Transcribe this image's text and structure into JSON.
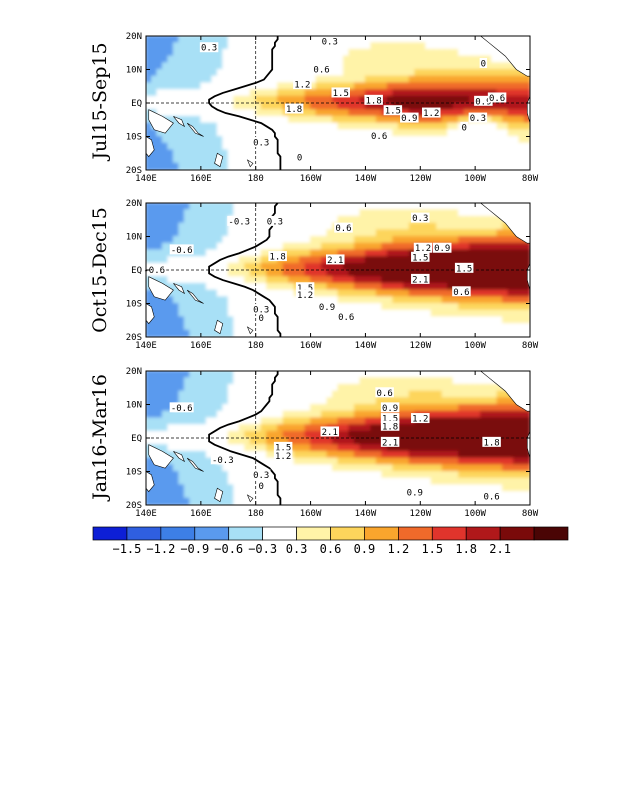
{
  "panels": [
    {
      "id": "p1",
      "title": "Jul15-Sep15",
      "contour_labels": [
        {
          "text": "0.3",
          "lon": 163,
          "lat": 16.5
        },
        {
          "text": "0.3",
          "lon": 207,
          "lat": 18.3
        },
        {
          "text": "0.6",
          "lon": 204,
          "lat": 10.0
        },
        {
          "text": "1.2",
          "lon": 197,
          "lat": 5.5
        },
        {
          "text": "1.5",
          "lon": 211,
          "lat": 3.0
        },
        {
          "text": "1.8",
          "lon": 223,
          "lat": 0.8
        },
        {
          "text": "1.8",
          "lon": 194,
          "lat": -1.8
        },
        {
          "text": "1.5",
          "lon": 230,
          "lat": -2.3
        },
        {
          "text": "0.9",
          "lon": 236,
          "lat": -4.5
        },
        {
          "text": "1.2",
          "lon": 244,
          "lat": -3.0
        },
        {
          "text": "0.9",
          "lon": 263,
          "lat": 0.5
        },
        {
          "text": "0.6",
          "lon": 268,
          "lat": 1.5
        },
        {
          "text": "0.3",
          "lon": 261,
          "lat": -4.5
        },
        {
          "text": "0.6",
          "lon": 225,
          "lat": -9.8
        },
        {
          "text": "0.3",
          "lon": 182,
          "lat": -11.8
        },
        {
          "text": "0",
          "lon": 196,
          "lat": -16.3
        },
        {
          "text": "0",
          "lon": 263,
          "lat": 11.8
        },
        {
          "text": "0",
          "lon": 256,
          "lat": -7.3
        }
      ]
    },
    {
      "id": "p2",
      "title": "Oct15-Dec15",
      "contour_labels": [
        {
          "text": "-0.3",
          "lon": 174,
          "lat": 14.5
        },
        {
          "text": "0.3",
          "lon": 187,
          "lat": 14.5
        },
        {
          "text": "-0.6",
          "lon": 153,
          "lat": 6.0
        },
        {
          "text": "-0.6",
          "lon": 143,
          "lat": 0.0
        },
        {
          "text": "0.6",
          "lon": 212,
          "lat": 12.5
        },
        {
          "text": "0.3",
          "lon": 240,
          "lat": 15.5
        },
        {
          "text": "1.2",
          "lon": 241,
          "lat": 6.5
        },
        {
          "text": "0.9",
          "lon": 248,
          "lat": 6.5
        },
        {
          "text": "1.8",
          "lon": 188,
          "lat": 4.0
        },
        {
          "text": "2.1",
          "lon": 209,
          "lat": 3.0
        },
        {
          "text": "1.5",
          "lon": 240,
          "lat": 3.8
        },
        {
          "text": "1.5",
          "lon": 256,
          "lat": 0.5
        },
        {
          "text": "2.1",
          "lon": 240,
          "lat": -2.8
        },
        {
          "text": "1.5",
          "lon": 198,
          "lat": -5.3
        },
        {
          "text": "1.2",
          "lon": 198,
          "lat": -7.5
        },
        {
          "text": "0.6",
          "lon": 255,
          "lat": -6.5
        },
        {
          "text": "0.3",
          "lon": 182,
          "lat": -11.8
        },
        {
          "text": "0.9",
          "lon": 206,
          "lat": -11.0
        },
        {
          "text": "0.6",
          "lon": 213,
          "lat": -14.0
        },
        {
          "text": "0",
          "lon": 182,
          "lat": -14.3
        }
      ]
    },
    {
      "id": "p3",
      "title": "Jan16-Mar16",
      "contour_labels": [
        {
          "text": "-0.6",
          "lon": 153,
          "lat": 9.0
        },
        {
          "text": "0.6",
          "lon": 227,
          "lat": 13.5
        },
        {
          "text": "0.9",
          "lon": 229,
          "lat": 9.0
        },
        {
          "text": "1.2",
          "lon": 240,
          "lat": 5.8
        },
        {
          "text": "1.5",
          "lon": 229,
          "lat": 5.8
        },
        {
          "text": "1.8",
          "lon": 229,
          "lat": 3.5
        },
        {
          "text": "2.1",
          "lon": 207,
          "lat": 1.8
        },
        {
          "text": "2.1",
          "lon": 229,
          "lat": -1.3
        },
        {
          "text": "1.8",
          "lon": 266,
          "lat": -1.3
        },
        {
          "text": "1.5",
          "lon": 190,
          "lat": -2.8
        },
        {
          "text": "1.2",
          "lon": 190,
          "lat": -5.3
        },
        {
          "text": "-0.3",
          "lon": 168,
          "lat": -6.5
        },
        {
          "text": "0.3",
          "lon": 182,
          "lat": -11.0
        },
        {
          "text": "0.9",
          "lon": 238,
          "lat": -16.3
        },
        {
          "text": "0.6",
          "lon": 266,
          "lat": -17.5
        },
        {
          "text": "0",
          "lon": 182,
          "lat": -14.3
        }
      ]
    }
  ],
  "axes": {
    "x_ticks": [
      "140E",
      "160E",
      "180",
      "160W",
      "140W",
      "120W",
      "100W",
      "80W"
    ],
    "y_ticks": [
      "20N",
      "10N",
      "EQ",
      "10S",
      "20S"
    ],
    "lon_range": [
      140,
      280
    ],
    "lat_range": [
      -20,
      20
    ]
  },
  "colorbar": {
    "labels": [
      "−1.5",
      "−1.2",
      "−0.9",
      "−0.6",
      "−0.3",
      "0.3",
      "0.6",
      "0.9",
      "1.2",
      "1.5",
      "1.8",
      "2.1"
    ],
    "colors": [
      "#0d1fd6",
      "#2f5fe0",
      "#3d7fe6",
      "#5a9aee",
      "#a8e0f6",
      "#ffffff",
      "#fff3a8",
      "#fdd55c",
      "#f9a52d",
      "#f06a2a",
      "#e0342c",
      "#b0181a",
      "#7a0a0a",
      "#4a0505"
    ]
  },
  "colors": {
    "land": "#ffffff",
    "coast": "#000000"
  }
}
